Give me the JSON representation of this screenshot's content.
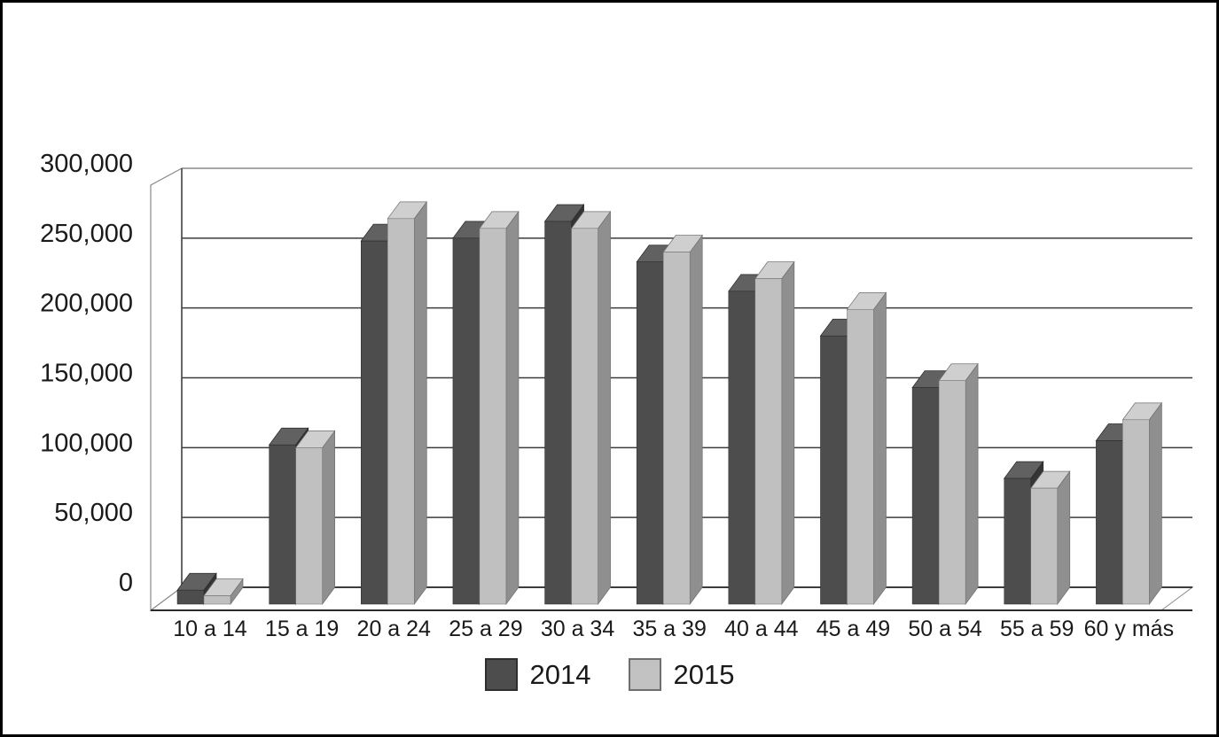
{
  "chart_data": {
    "type": "bar",
    "style": "3d-effect clustered columns, grayscale",
    "title": "",
    "categories": [
      "10 a 14",
      "15 a 19",
      "20 a 24",
      "25 a 29",
      "30 a 34",
      "35 a 39",
      "40 a 44",
      "45 a 49",
      "50 a 54",
      "55 a 59",
      "60 y más"
    ],
    "series": [
      {
        "name": "2014",
        "values": [
          10000,
          114000,
          260000,
          262000,
          274000,
          245000,
          224000,
          192000,
          155000,
          90000,
          117000
        ]
      },
      {
        "name": "2015",
        "values": [
          6000,
          112000,
          276000,
          269000,
          269000,
          252000,
          233000,
          211000,
          160000,
          83000,
          132000
        ]
      }
    ],
    "y_axis": {
      "min": 0,
      "max": 300000,
      "step": 50000,
      "tick_labels": [
        "0",
        "50,000",
        "100,000",
        "150,000",
        "200,000",
        "250,000",
        "300,000"
      ]
    },
    "x_axis": {
      "tick_labels": [
        "10 a 14",
        "15 a 19",
        "20 a 24",
        "25 a 29",
        "30 a 34",
        "35 a 39",
        "40 a 44",
        "45 a 49",
        "50 a 54",
        "55 a 59",
        "60 y más"
      ]
    },
    "legend_position": "bottom-center",
    "grid": true,
    "colors": {
      "series_2014": {
        "front": "#4d4d4d",
        "top": "#616161",
        "side": "#353535"
      },
      "series_2015": {
        "front": "#c0c0c0",
        "top": "#cfcfcf",
        "side": "#8f8f8f"
      },
      "gridline": "#3c3c3c",
      "wall_edge": "#8a8a8a",
      "text": "#1a1a1a",
      "background": "#ffffff",
      "outer_border": "#000000"
    }
  }
}
